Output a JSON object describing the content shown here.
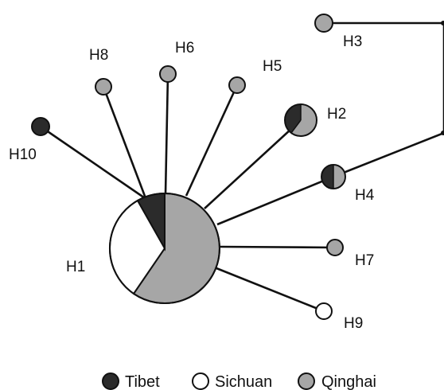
{
  "colors": {
    "tibet": "#2b2b2b",
    "sichuan": "#ffffff",
    "qinghai": "#a6a6a6",
    "edge": "#111111"
  },
  "network": {
    "haplotypes": [
      {
        "id": "H1",
        "label": "H1",
        "composition": {
          "Tibet": 0.08,
          "Sichuan": 0.33,
          "Qinghai": 0.59
        }
      },
      {
        "id": "H2",
        "label": "H2",
        "composition": {
          "Tibet": 0.4,
          "Qinghai": 0.6
        }
      },
      {
        "id": "H3",
        "label": "H3",
        "composition": {
          "Qinghai": 1
        }
      },
      {
        "id": "H4",
        "label": "H4",
        "composition": {
          "Tibet": 0.5,
          "Qinghai": 0.5
        }
      },
      {
        "id": "H5",
        "label": "H5",
        "composition": {
          "Qinghai": 1
        }
      },
      {
        "id": "H6",
        "label": "H6",
        "composition": {
          "Qinghai": 1
        }
      },
      {
        "id": "H7",
        "label": "H7",
        "composition": {
          "Qinghai": 1
        }
      },
      {
        "id": "H8",
        "label": "H8",
        "composition": {
          "Qinghai": 1
        }
      },
      {
        "id": "H9",
        "label": "H9",
        "composition": {
          "Sichuan": 1
        }
      },
      {
        "id": "H10",
        "label": "H10",
        "composition": {
          "Tibet": 1
        }
      }
    ],
    "links": [
      [
        "H1",
        "H10"
      ],
      [
        "H1",
        "H8"
      ],
      [
        "H1",
        "H6"
      ],
      [
        "H1",
        "H5"
      ],
      [
        "H1",
        "H2"
      ],
      [
        "H1",
        "H4"
      ],
      [
        "H1",
        "H7"
      ],
      [
        "H1",
        "H9"
      ],
      [
        "H4",
        "H3"
      ]
    ]
  },
  "legend": [
    {
      "name": "Tibet",
      "label": "Tibet",
      "color": "#2b2b2b"
    },
    {
      "name": "Sichuan",
      "label": "Sichuan",
      "color": "#ffffff"
    },
    {
      "name": "Qinghai",
      "label": "Qinghai",
      "color": "#a6a6a6"
    }
  ]
}
